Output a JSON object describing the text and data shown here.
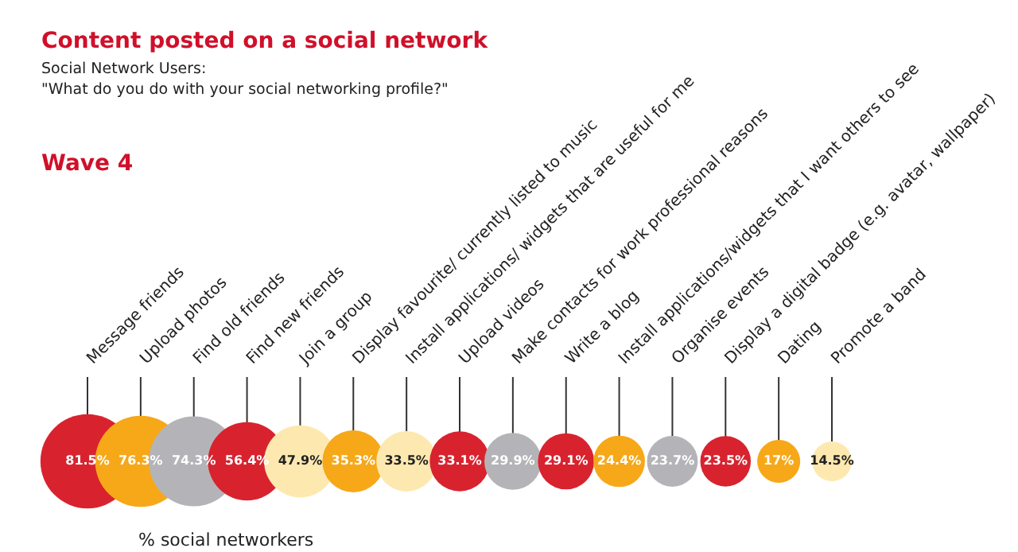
{
  "chart_data": {
    "type": "other",
    "title": "Content posted on a social network",
    "subtitle": "Social Network Users:\n\"What do you do with your social networking profile?\"",
    "annotations": [
      "Wave 4"
    ],
    "xlabel": "% social networkers",
    "categories": [
      "Message friends",
      "Upload photos",
      "Find old friends",
      "Find new friends",
      "Join a group",
      "Display favourite/ currently listed to music",
      "Install applications/ widgets that are useful for me",
      "Upload videos",
      "Make contacts for work professional reasons",
      "Write a blog",
      "Install applications/widgets that I want others to see",
      "Organise events",
      "Display a digital badge (e.g. avatar, wallpaper)",
      "Dating",
      "Promote a band"
    ],
    "values": [
      81.5,
      76.3,
      74.3,
      56.4,
      47.9,
      35.3,
      33.5,
      33.1,
      29.9,
      29.1,
      24.4,
      23.7,
      23.5,
      17,
      14.5
    ],
    "value_labels": [
      "81.5%",
      "76.3%",
      "74.3%",
      "56.4%",
      "47.9%",
      "35.3%",
      "33.5%",
      "33.1%",
      "29.9%",
      "29.1%",
      "24.4%",
      "23.7%",
      "23.5%",
      "17%",
      "14.5%"
    ],
    "colors": [
      "#d8232f",
      "#f6a819",
      "#b4b4b8",
      "#d8232f",
      "#fde9b0",
      "#f6a819",
      "#fde9b0",
      "#d8232f",
      "#b4b4b8",
      "#d8232f",
      "#f6a819",
      "#b4b4b8",
      "#d8232f",
      "#f6a819",
      "#fde9b0"
    ]
  }
}
